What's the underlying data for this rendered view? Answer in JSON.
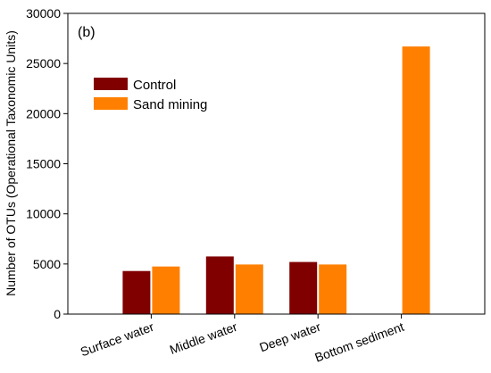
{
  "chart_data": {
    "type": "bar",
    "panel_label": "(b)",
    "title": "",
    "xlabel": "",
    "ylabel": "Number of OTUs (Operational Taxonomic Units)",
    "ylim": [
      0,
      30000
    ],
    "yticks": [
      0,
      5000,
      10000,
      15000,
      20000,
      25000,
      30000
    ],
    "categories": [
      "Surface water",
      "Middle water",
      "Deep water",
      "Bottom sediment"
    ],
    "series": [
      {
        "name": "Control",
        "color": "#800000",
        "values": [
          4300,
          5750,
          5200,
          null
        ]
      },
      {
        "name": "Sand mining",
        "color": "#ff8000",
        "values": [
          4750,
          4950,
          4950,
          26700
        ]
      }
    ],
    "legend_position": "top-left",
    "grid": false
  }
}
